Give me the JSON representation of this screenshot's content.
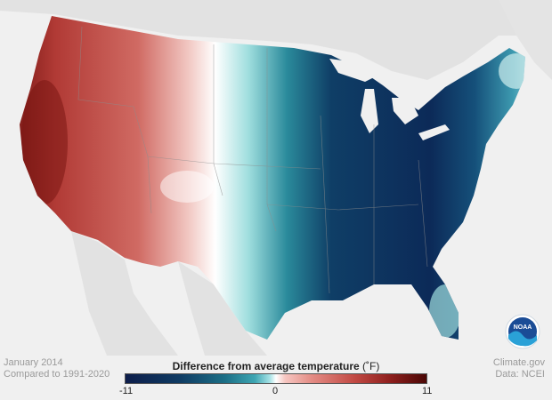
{
  "footer": {
    "period": "January 2014",
    "baseline": "Compared to 1991-2020",
    "source_site": "Climate.gov",
    "source_data": "Data: NCEI"
  },
  "legend": {
    "title": "Difference from average temperature",
    "unit": "(˚F)",
    "min_label": "-11",
    "mid_label": "0",
    "max_label": "11",
    "colors": {
      "cold_extreme": "#0d1d4a",
      "cold": "#1c6f86",
      "neutral": "#ffffff",
      "warm": "#c24a44",
      "warm_extreme": "#4a0705"
    }
  },
  "logo": {
    "text": "NOAA"
  }
}
